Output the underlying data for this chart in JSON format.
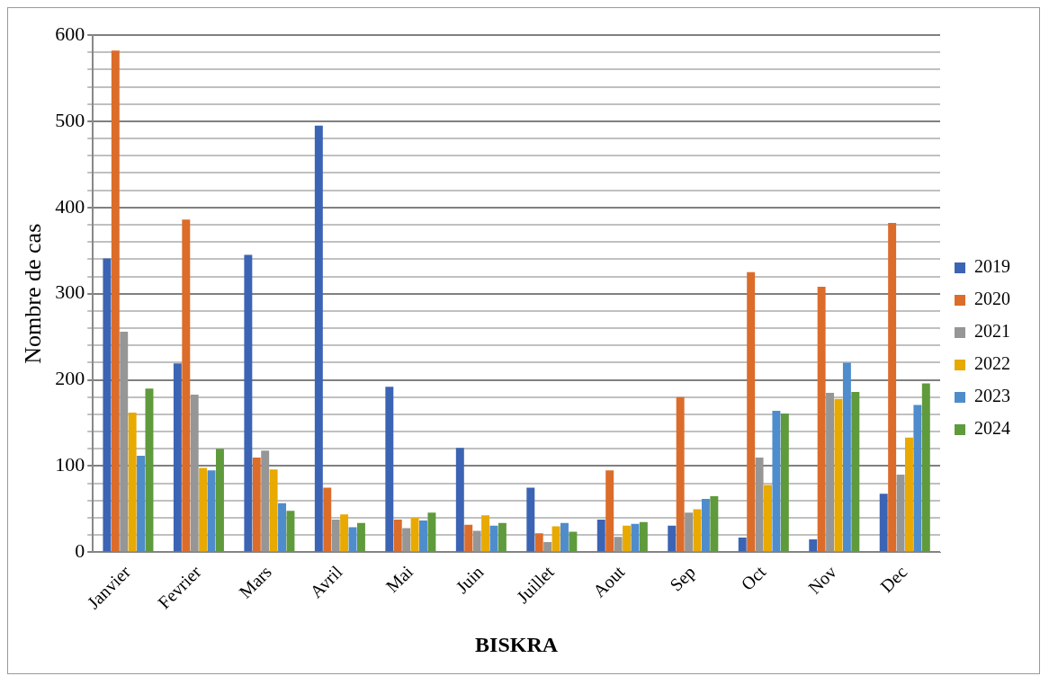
{
  "chart_data": {
    "type": "bar",
    "xlabel": "BISKRA",
    "ylabel": "Nombre de cas",
    "categories": [
      "Janvier",
      "Fevrier",
      "Mars",
      "Avril",
      "Mai",
      "Juin",
      "Juillet",
      "Aout",
      "Sep",
      "Oct",
      "Nov",
      "Dec"
    ],
    "series": [
      {
        "name": "2019",
        "color": "#3c64b4",
        "values": [
          341,
          219,
          345,
          495,
          192,
          121,
          75,
          38,
          31,
          17,
          15,
          68
        ]
      },
      {
        "name": "2020",
        "color": "#dc6c2a",
        "values": [
          582,
          386,
          110,
          75,
          38,
          32,
          22,
          95,
          180,
          325,
          308,
          382
        ]
      },
      {
        "name": "2021",
        "color": "#969696",
        "values": [
          256,
          183,
          118,
          38,
          28,
          25,
          12,
          18,
          46,
          110,
          185,
          90
        ]
      },
      {
        "name": "2022",
        "color": "#e8a900",
        "values": [
          162,
          98,
          96,
          44,
          40,
          43,
          30,
          31,
          50,
          78,
          178,
          133
        ]
      },
      {
        "name": "2023",
        "color": "#4f8ccc",
        "values": [
          112,
          95,
          57,
          29,
          37,
          31,
          34,
          33,
          62,
          164,
          220,
          171
        ]
      },
      {
        "name": "2024",
        "color": "#5f9a3c",
        "values": [
          190,
          120,
          48,
          34,
          46,
          34,
          24,
          35,
          65,
          161,
          186,
          196
        ]
      }
    ],
    "ylim": [
      0,
      600
    ],
    "yticks": [
      0,
      {
        "value": 20,
        "label": null
      },
      {
        "value": 40,
        "label": null
      },
      {
        "value": 60,
        "label": null
      },
      {
        "value": 80,
        "label": null
      },
      100,
      {
        "value": 120,
        "label": null
      },
      {
        "value": 140,
        "label": null
      },
      {
        "value": 160,
        "label": null
      },
      {
        "value": 180,
        "label": null
      },
      200,
      {
        "value": 220,
        "label": null
      },
      {
        "value": 240,
        "label": null
      },
      {
        "value": 260,
        "label": null
      },
      {
        "value": 280,
        "label": null
      },
      300,
      {
        "value": 320,
        "label": null
      },
      {
        "value": 340,
        "label": null
      },
      {
        "value": 360,
        "label": null
      },
      {
        "value": 380,
        "label": null
      },
      400,
      {
        "value": 420,
        "label": null
      },
      {
        "value": 440,
        "label": null
      },
      {
        "value": 460,
        "label": null
      },
      {
        "value": 480,
        "label": null
      },
      500,
      {
        "value": 520,
        "label": null
      },
      {
        "value": 540,
        "label": null
      },
      {
        "value": 560,
        "label": null
      },
      {
        "value": 580,
        "label": null
      },
      600
    ],
    "grid": "y",
    "legend": "right"
  }
}
